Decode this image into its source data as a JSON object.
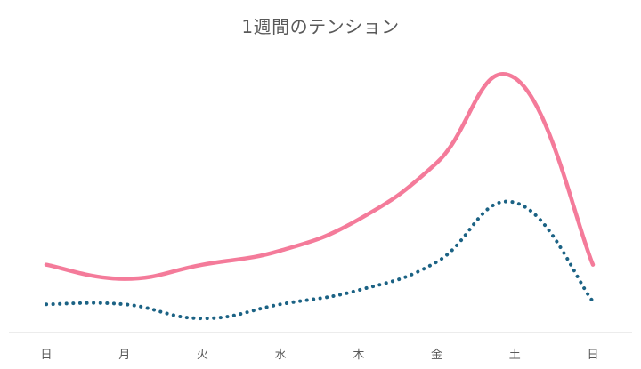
{
  "chart_data": {
    "type": "line",
    "title": "1週間のテンション",
    "categories": [
      "日",
      "月",
      "火",
      "水",
      "木",
      "金",
      "土",
      "日"
    ],
    "ylim": [
      0,
      100
    ],
    "grid": false,
    "legend": "none",
    "series": [
      {
        "color": "#F47B9A",
        "style": "solid",
        "values": [
          24,
          19,
          24,
          29,
          40,
          60,
          90,
          24
        ]
      },
      {
        "color": "#1B6284",
        "style": "dotted",
        "values": [
          10,
          10,
          5,
          10,
          15,
          25,
          46,
          11
        ]
      }
    ]
  }
}
